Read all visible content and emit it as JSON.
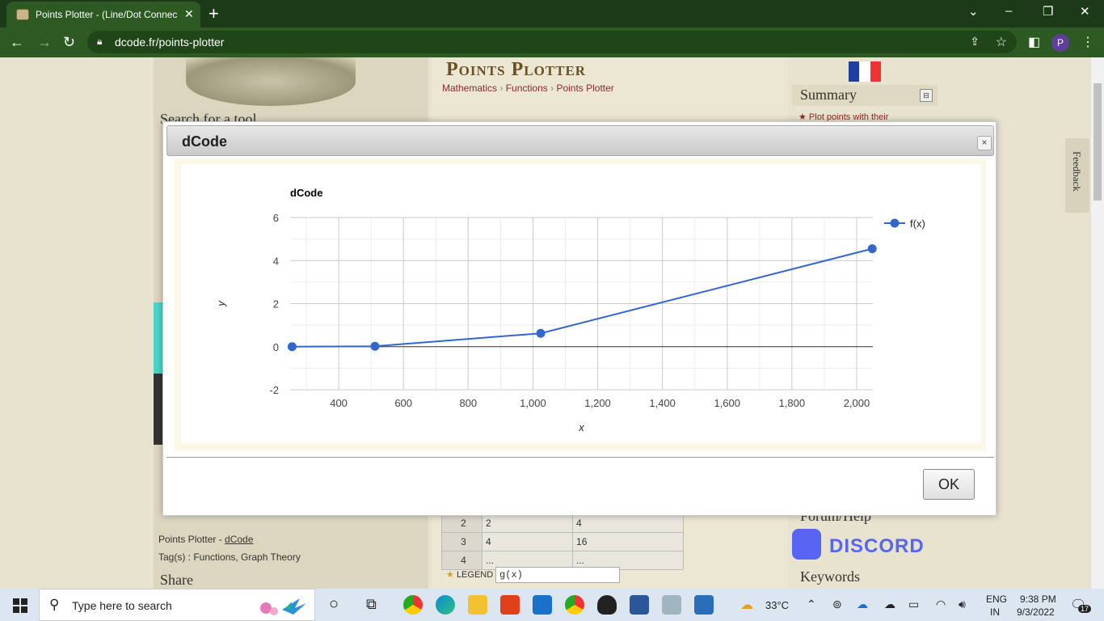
{
  "browser": {
    "tab_title": "Points Plotter - (Line/Dot Connec",
    "url": "dcode.fr/points-plotter",
    "profile_initial": "P"
  },
  "page": {
    "search_label": "Search for a tool",
    "title": "Points Plotter",
    "breadcrumbs": [
      "Mathematics",
      "Functions",
      "Points Plotter"
    ],
    "summary_label": "Summary",
    "summary_item": "Plot points with their",
    "feedback_label": "Feedback",
    "table_rows": [
      {
        "n": "2",
        "x": "2",
        "y": "4"
      },
      {
        "n": "3",
        "x": "4",
        "y": "16"
      },
      {
        "n": "4",
        "x": "...",
        "y": "..."
      }
    ],
    "legend_label": "LEGEND",
    "legend_value": "g(x)",
    "footer_source_prefix": "Points Plotter - ",
    "footer_source_link": "dCode",
    "footer_tags": "Tag(s) : Functions, Graph Theory",
    "share_label": "Share",
    "forum_label": "Forum/Help",
    "discord_label": "DISCORD",
    "keywords_label": "Keywords"
  },
  "dialog": {
    "title": "dCode",
    "close_label": "×",
    "ok_label": "OK"
  },
  "chart_data": {
    "type": "line",
    "title": "dCode",
    "xlabel": "x",
    "ylabel": "y",
    "xlim": [
      250,
      2050
    ],
    "ylim": [
      -2,
      6
    ],
    "x_ticks": [
      400,
      600,
      800,
      1000,
      1200,
      1400,
      1600,
      1800,
      2000
    ],
    "x_tick_labels": [
      "400",
      "600",
      "800",
      "1,000",
      "1,200",
      "1,400",
      "1,600",
      "1,800",
      "2,000"
    ],
    "y_ticks": [
      -2,
      0,
      2,
      4,
      6
    ],
    "grid": true,
    "legend_position": "right",
    "series": [
      {
        "name": "f(x)",
        "color": "#3366cc",
        "x": [
          256,
          512,
          1024,
          2048
        ],
        "y": [
          0,
          0.02,
          0.62,
          4.55
        ]
      }
    ]
  },
  "taskbar": {
    "search_placeholder": "Type here to search",
    "temperature": "33°C",
    "lang_line1": "ENG",
    "lang_line2": "IN",
    "time": "9:38 PM",
    "date": "9/3/2022",
    "notification_count": "17"
  },
  "colors": {
    "chrome_dark": "#1d3a18",
    "chrome": "#2d5a22",
    "series": "#3366cc",
    "discord": "#5865f2"
  }
}
